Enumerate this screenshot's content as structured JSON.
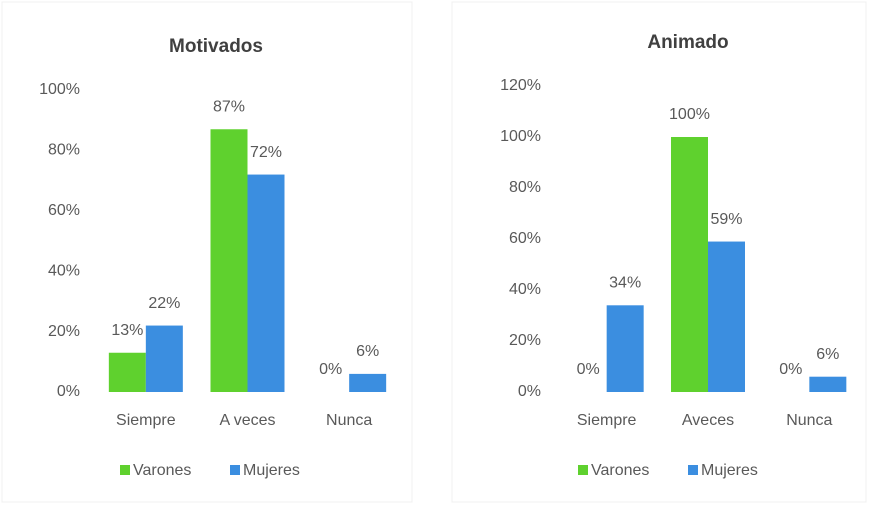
{
  "chart_data": [
    {
      "type": "bar",
      "title": "Motivados",
      "categories": [
        "Siempre",
        "A veces",
        "Nunca"
      ],
      "series": [
        {
          "name": "Varones",
          "color": "#5fd12e",
          "values": [
            13,
            87,
            0
          ],
          "value_labels": [
            "13%",
            "87%",
            "0%"
          ]
        },
        {
          "name": "Mujeres",
          "color": "#3b8ee0",
          "values": [
            22,
            72,
            6
          ],
          "value_labels": [
            "22%",
            "72%",
            "6%"
          ]
        }
      ],
      "ylim": [
        0,
        100
      ],
      "yticks": [
        {
          "value": 0,
          "label": "0%"
        },
        {
          "value": 20,
          "label": "20%"
        },
        {
          "value": 40,
          "label": "40%"
        },
        {
          "value": 60,
          "label": "60%"
        },
        {
          "value": 80,
          "label": "80%"
        },
        {
          "value": 100,
          "label": "100%"
        }
      ],
      "grid": false,
      "legend": "bottom"
    },
    {
      "type": "bar",
      "title": "Animado",
      "categories": [
        "Siempre",
        "Aveces",
        "Nunca"
      ],
      "series": [
        {
          "name": "Varones",
          "color": "#5fd12e",
          "values": [
            0,
            100,
            0
          ],
          "value_labels": [
            "0%",
            "100%",
            "0%"
          ]
        },
        {
          "name": "Mujeres",
          "color": "#3b8ee0",
          "values": [
            34,
            59,
            6
          ],
          "value_labels": [
            "34%",
            "59%",
            "6%"
          ]
        }
      ],
      "ylim": [
        0,
        120
      ],
      "yticks": [
        {
          "value": 0,
          "label": "0%"
        },
        {
          "value": 20,
          "label": "20%"
        },
        {
          "value": 40,
          "label": "40%"
        },
        {
          "value": 60,
          "label": "60%"
        },
        {
          "value": 80,
          "label": "80%"
        },
        {
          "value": 100,
          "label": "100%"
        },
        {
          "value": 120,
          "label": "120%"
        }
      ],
      "grid": false,
      "legend": "bottom"
    }
  ]
}
